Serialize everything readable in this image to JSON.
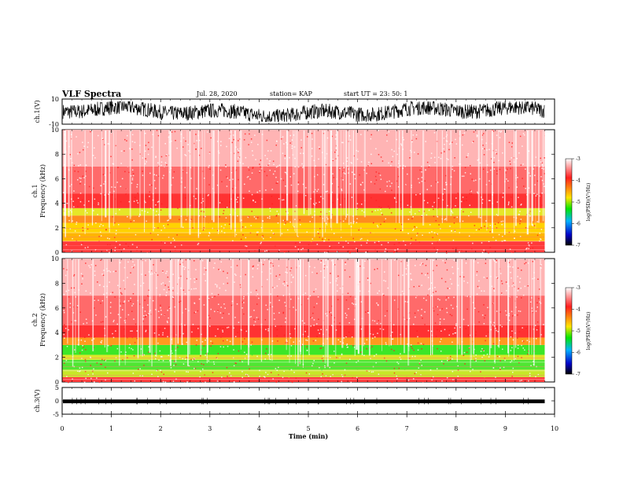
{
  "header": {
    "title": "VLF Spectra",
    "date": "Jul. 28, 2020",
    "station": "station= KAP",
    "start": "start  UT =   23: 50: 1"
  },
  "colorbar": {
    "label": "log(PSD)(V²/Hz)",
    "ticks": [
      "-3",
      "-4",
      "-5",
      "-6",
      "-7"
    ],
    "stops": [
      "#ffffff",
      "#ff1e1e",
      "#ffe600",
      "#00e600",
      "#00b4ff",
      "#0000c8",
      "#000000"
    ]
  },
  "chart_data": [
    {
      "type": "line",
      "name": "ch1 waveform",
      "ylabel": "ch.1(V)",
      "xlim": [
        0,
        10
      ],
      "ylim": [
        -10,
        10
      ],
      "yticks": [
        "10",
        "-10"
      ],
      "x_end": 9.8,
      "amplitude_range": [
        -8,
        8
      ],
      "color": "#000000"
    },
    {
      "type": "heatmap",
      "name": "ch1 spectrogram",
      "ylabel": "ch.1\nFrequency (kHz)",
      "xlim": [
        0,
        10
      ],
      "ylim": [
        0,
        10
      ],
      "yticks": [
        "0",
        "2",
        "4",
        "6",
        "8",
        "10"
      ],
      "x_end": 9.8,
      "bands": [
        {
          "from": 0,
          "to": 0.9,
          "color": "#ff3a3a"
        },
        {
          "from": 0.9,
          "to": 1.6,
          "color": "#ffb400"
        },
        {
          "from": 1.6,
          "to": 2.4,
          "color": "#ffd200"
        },
        {
          "from": 2.4,
          "to": 3.0,
          "color": "#ff8c1e"
        },
        {
          "from": 3.0,
          "to": 3.6,
          "color": "#e6e628"
        },
        {
          "from": 3.6,
          "to": 4.8,
          "color": "#ff3232"
        },
        {
          "from": 4.8,
          "to": 7.0,
          "color": "#ff6a6a"
        },
        {
          "from": 7.0,
          "to": 10.0,
          "color": "#ffb4b4"
        }
      ]
    },
    {
      "type": "heatmap",
      "name": "ch2 spectrogram",
      "ylabel": "ch.2\nFrequency (kHz)",
      "xlim": [
        0,
        10
      ],
      "ylim": [
        0,
        10
      ],
      "yticks": [
        "0",
        "2",
        "4",
        "6",
        "8",
        "10"
      ],
      "x_end": 9.8,
      "bands": [
        {
          "from": 0,
          "to": 0.4,
          "color": "#ff3a3a"
        },
        {
          "from": 0.4,
          "to": 1.0,
          "color": "#c8e628"
        },
        {
          "from": 1.0,
          "to": 1.8,
          "color": "#50e632"
        },
        {
          "from": 1.8,
          "to": 2.2,
          "color": "#dce628"
        },
        {
          "from": 2.2,
          "to": 3.0,
          "color": "#3ce628"
        },
        {
          "from": 3.0,
          "to": 3.6,
          "color": "#ff9a1e"
        },
        {
          "from": 3.6,
          "to": 4.6,
          "color": "#ff3232"
        },
        {
          "from": 4.6,
          "to": 7.0,
          "color": "#ff6a6a"
        },
        {
          "from": 7.0,
          "to": 10.0,
          "color": "#ffb4b4"
        }
      ]
    },
    {
      "type": "line",
      "name": "ch3 waveform",
      "ylabel": "ch.3(V)",
      "xlim": [
        0,
        10
      ],
      "ylim": [
        -5,
        5
      ],
      "yticks": [
        "5",
        "0",
        "-5"
      ],
      "x_end": 9.8,
      "level": -0.2,
      "amplitude_range": [
        -0.9,
        0.5
      ],
      "color": "#000000"
    }
  ],
  "x_axis": {
    "xlabel": "Time (min)",
    "ticks": [
      "0",
      "1",
      "2",
      "3",
      "4",
      "5",
      "6",
      "7",
      "8",
      "9",
      "10"
    ]
  }
}
